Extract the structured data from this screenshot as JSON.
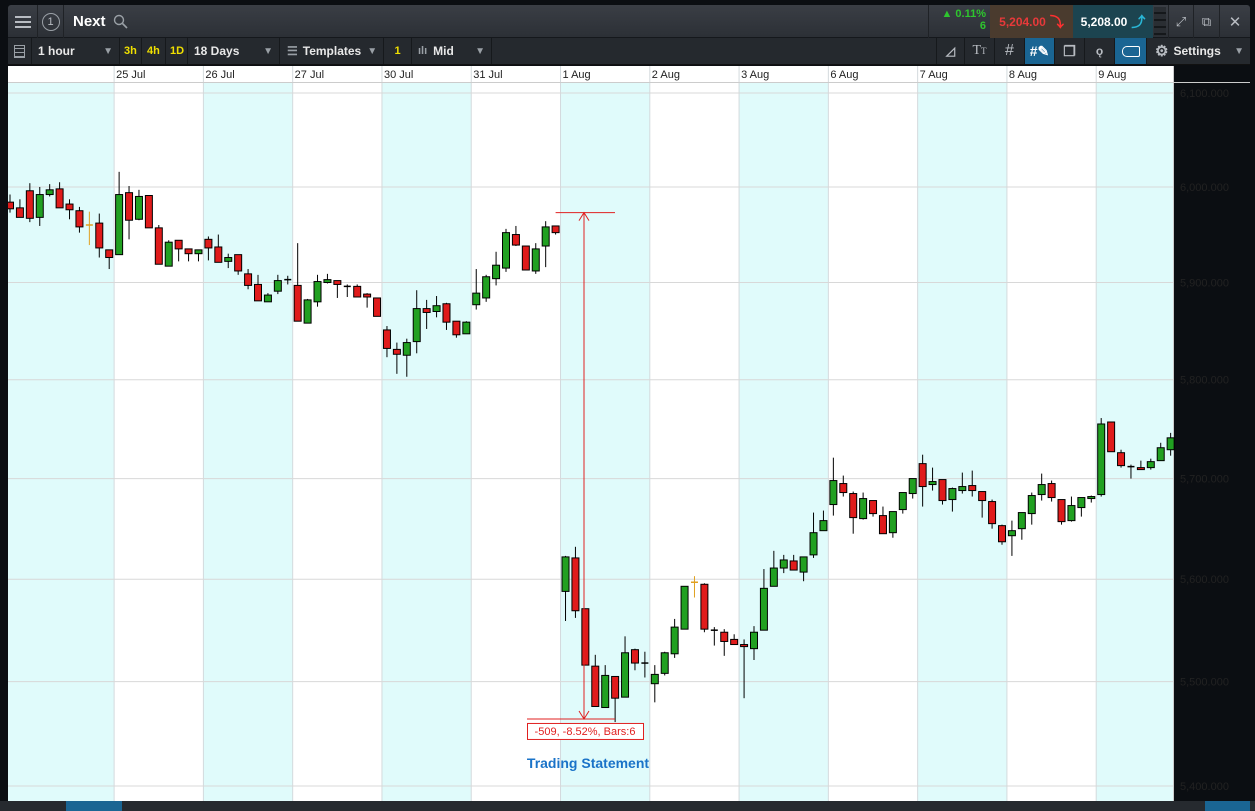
{
  "header": {
    "symbol_number": "1",
    "title": "Next",
    "change_pct": "▲ 0.11%",
    "change_pts": "6",
    "sell_price": "5,204.00",
    "buy_price": "5,208.00"
  },
  "toolbar": {
    "interval": "1 hour",
    "quick": [
      "3h",
      "4h",
      "1D"
    ],
    "range": "18 Days",
    "templates": "Templates",
    "layout_count": "1",
    "price_type": "Mid",
    "settings": "Settings"
  },
  "colors": {
    "up": "#21a021",
    "down": "#e01b1b",
    "doji_highlight": "#e0a020",
    "band": "#e0fbfb",
    "sell": "#e8393a",
    "buy_arrow": "#29b6d6",
    "active_tool": "#1a6593",
    "annotation": "#e02020",
    "event": "#1a73c8"
  },
  "chart_data": {
    "type": "candlestick",
    "scale": "log",
    "ylim": [
      5400,
      6100
    ],
    "y_ticks": [
      "6,100.000",
      "6,000.000",
      "5,900.000",
      "5,800.000",
      "5,700.000",
      "5,600.000",
      "5,500.000",
      "5,400.000"
    ],
    "y_tick_values": [
      6100,
      6000,
      5900,
      5800,
      5700,
      5600,
      5500,
      5400
    ],
    "grid": true,
    "days": [
      {
        "label": "",
        "bars": 11
      },
      {
        "label": "25 Jul",
        "bars": 9
      },
      {
        "label": "26 Jul",
        "bars": 9
      },
      {
        "label": "27 Jul",
        "bars": 9
      },
      {
        "label": "30 Jul",
        "bars": 9
      },
      {
        "label": "31 Jul",
        "bars": 9
      },
      {
        "label": "1 Aug",
        "bars": 9
      },
      {
        "label": "2 Aug",
        "bars": 9
      },
      {
        "label": "3 Aug",
        "bars": 9
      },
      {
        "label": "6 Aug",
        "bars": 9
      },
      {
        "label": "7 Aug",
        "bars": 9
      },
      {
        "label": "8 Aug",
        "bars": 9
      },
      {
        "label": "9 Aug",
        "bars": 8
      }
    ],
    "highlight_bars": [
      8,
      69
    ],
    "ohlc": [
      [
        5984,
        5992,
        5973,
        5977
      ],
      [
        5978,
        5987,
        5968,
        5968
      ],
      [
        5996,
        6004,
        5963,
        5967
      ],
      [
        5968,
        6000,
        5959,
        5992
      ],
      [
        5992,
        6003,
        5990,
        5997
      ],
      [
        5998,
        6005,
        5978,
        5978
      ],
      [
        5982,
        5987,
        5966,
        5976
      ],
      [
        5975,
        5979,
        5952,
        5958
      ],
      [
        5960,
        5974,
        5939,
        5960
      ],
      [
        5962,
        5972,
        5926,
        5936
      ],
      [
        5934,
        5934,
        5914,
        5926
      ],
      [
        5929,
        6016,
        5929,
        5992
      ],
      [
        5994,
        6001,
        5945,
        5965
      ],
      [
        5966,
        5997,
        5965,
        5990
      ],
      [
        5991,
        5991,
        5957,
        5957
      ],
      [
        5957,
        5960,
        5919,
        5919
      ],
      [
        5917,
        5944,
        5917,
        5942
      ],
      [
        5944,
        5944,
        5922,
        5935
      ],
      [
        5935,
        5935,
        5922,
        5930
      ],
      [
        5930,
        5934,
        5922,
        5934
      ],
      [
        5945,
        5948,
        5923,
        5936
      ],
      [
        5937,
        5950,
        5921,
        5921
      ],
      [
        5922,
        5930,
        5915,
        5926
      ],
      [
        5929,
        5929,
        5908,
        5912
      ],
      [
        5909,
        5914,
        5893,
        5897
      ],
      [
        5898,
        5908,
        5881,
        5881
      ],
      [
        5880,
        5889,
        5880,
        5887
      ],
      [
        5891,
        5908,
        5888,
        5902
      ],
      [
        5903,
        5907,
        5898,
        5903
      ],
      [
        5897,
        5941,
        5860,
        5860
      ],
      [
        5858,
        5883,
        5858,
        5882
      ],
      [
        5880,
        5908,
        5875,
        5901
      ],
      [
        5900,
        5909,
        5899,
        5903
      ],
      [
        5902,
        5902,
        5884,
        5898
      ],
      [
        5896,
        5898,
        5885,
        5896
      ],
      [
        5896,
        5898,
        5885,
        5885
      ],
      [
        5888,
        5889,
        5874,
        5885
      ],
      [
        5884,
        5884,
        5865,
        5865
      ],
      [
        5851,
        5855,
        5823,
        5832
      ],
      [
        5831,
        5838,
        5806,
        5826
      ],
      [
        5825,
        5842,
        5803,
        5838
      ],
      [
        5839,
        5892,
        5827,
        5873
      ],
      [
        5873,
        5882,
        5852,
        5869
      ],
      [
        5870,
        5886,
        5864,
        5876
      ],
      [
        5878,
        5879,
        5851,
        5859
      ],
      [
        5860,
        5860,
        5843,
        5846
      ],
      [
        5847,
        5860,
        5847,
        5859
      ],
      [
        5877,
        5914,
        5872,
        5889
      ],
      [
        5884,
        5908,
        5880,
        5906
      ],
      [
        5904,
        5932,
        5897,
        5918
      ],
      [
        5915,
        5956,
        5911,
        5952
      ],
      [
        5950,
        5959,
        5938,
        5939
      ],
      [
        5938,
        5938,
        5913,
        5913
      ],
      [
        5912,
        5941,
        5909,
        5935
      ],
      [
        5938,
        5964,
        5916,
        5958
      ],
      [
        5959,
        5959,
        5950,
        5952
      ],
      [
        5588,
        5623,
        5559,
        5622
      ],
      [
        5621,
        5632,
        5562,
        5569
      ],
      [
        5571,
        5571,
        5516,
        5516
      ],
      [
        5515,
        5526,
        5476,
        5476
      ],
      [
        5475,
        5516,
        5475,
        5506
      ],
      [
        5505,
        5505,
        5461,
        5484
      ],
      [
        5485,
        5544,
        5485,
        5528
      ],
      [
        5531,
        5532,
        5511,
        5518
      ],
      [
        5518,
        5529,
        5504,
        5518
      ],
      [
        5498,
        5516,
        5480,
        5507
      ],
      [
        5508,
        5529,
        5506,
        5528
      ],
      [
        5527,
        5561,
        5523,
        5553
      ],
      [
        5551,
        5593,
        5551,
        5593
      ],
      [
        5597,
        5603,
        5582,
        5597
      ],
      [
        5595,
        5596,
        5548,
        5551
      ],
      [
        5550,
        5553,
        5535,
        5550
      ],
      [
        5548,
        5551,
        5525,
        5539
      ],
      [
        5541,
        5546,
        5536,
        5536
      ],
      [
        5536,
        5541,
        5484,
        5534
      ],
      [
        5532,
        5554,
        5521,
        5548
      ],
      [
        5550,
        5610,
        5550,
        5591
      ],
      [
        5593,
        5628,
        5593,
        5611
      ],
      [
        5611,
        5624,
        5606,
        5619
      ],
      [
        5618,
        5624,
        5609,
        5609
      ],
      [
        5607,
        5622,
        5598,
        5622
      ],
      [
        5624,
        5666,
        5621,
        5646
      ],
      [
        5648,
        5668,
        5648,
        5658
      ],
      [
        5674,
        5721,
        5663,
        5698
      ],
      [
        5695,
        5703,
        5682,
        5686
      ],
      [
        5685,
        5687,
        5645,
        5661
      ],
      [
        5660,
        5686,
        5659,
        5680
      ],
      [
        5678,
        5678,
        5662,
        5665
      ],
      [
        5663,
        5672,
        5645,
        5645
      ],
      [
        5646,
        5667,
        5641,
        5667
      ],
      [
        5669,
        5686,
        5665,
        5686
      ],
      [
        5685,
        5700,
        5680,
        5700
      ],
      [
        5715,
        5724,
        5672,
        5692
      ],
      [
        5694,
        5711,
        5688,
        5697
      ],
      [
        5699,
        5699,
        5674,
        5678
      ],
      [
        5679,
        5691,
        5667,
        5690
      ],
      [
        5688,
        5706,
        5685,
        5692
      ],
      [
        5693,
        5708,
        5682,
        5688
      ],
      [
        5687,
        5687,
        5661,
        5678
      ],
      [
        5677,
        5679,
        5650,
        5655
      ],
      [
        5653,
        5654,
        5634,
        5637
      ],
      [
        5643,
        5658,
        5623,
        5648
      ],
      [
        5650,
        5666,
        5639,
        5666
      ],
      [
        5665,
        5686,
        5654,
        5683
      ],
      [
        5684,
        5705,
        5678,
        5694
      ],
      [
        5695,
        5698,
        5677,
        5681
      ],
      [
        5679,
        5679,
        5654,
        5657
      ],
      [
        5658,
        5682,
        5657,
        5673
      ],
      [
        5671,
        5681,
        5662,
        5681
      ],
      [
        5680,
        5683,
        5676,
        5682
      ],
      [
        5684,
        5761,
        5682,
        5755
      ],
      [
        5757,
        5757,
        5727,
        5727
      ],
      [
        5726,
        5729,
        5711,
        5713
      ],
      [
        5712,
        5714,
        5700,
        5712
      ],
      [
        5711,
        5718,
        5709,
        5709
      ],
      [
        5711,
        5720,
        5709,
        5717
      ],
      [
        5718,
        5736,
        5718,
        5731
      ],
      [
        5729,
        5746,
        5723,
        5741
      ]
    ],
    "measure": {
      "from_bar": 55,
      "to_bar": 61,
      "high": 5973,
      "low": 5464,
      "label": "-509, -8.52%, Bars:6"
    },
    "event": {
      "bar": 56,
      "label": "Trading Statement"
    }
  }
}
